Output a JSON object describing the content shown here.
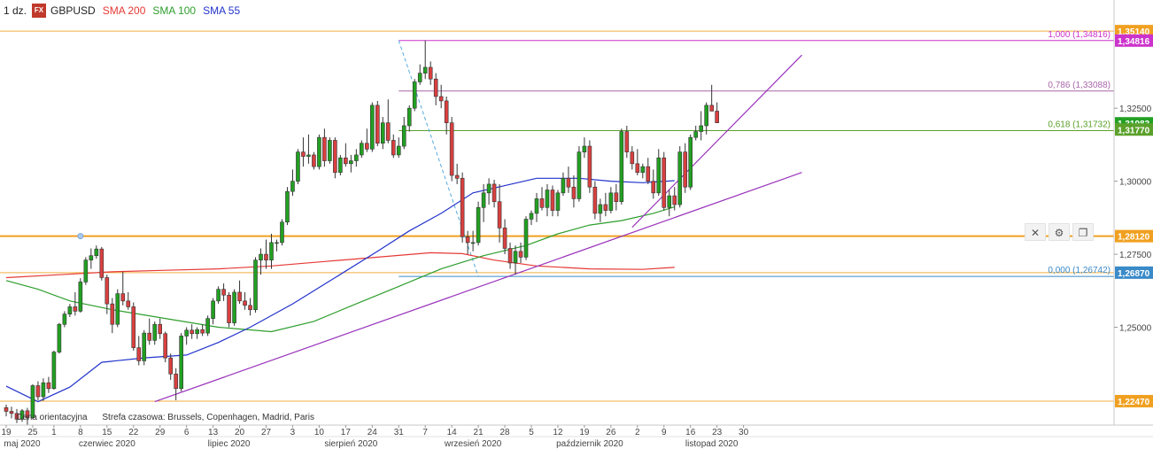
{
  "legend": {
    "timeframe": "1 dz.",
    "fx_badge": "FX",
    "symbol": "GBPUSD",
    "indicators": [
      {
        "label": "SMA 200",
        "color": "#e53935"
      },
      {
        "label": "SMA 100",
        "color": "#2e9e2e"
      },
      {
        "label": "SMA 55",
        "color": "#2233cc"
      }
    ]
  },
  "footer": {
    "price_note": "Cena orientacyjna",
    "timezone_note": "Strefa czasowa: Brussels, Copenhagen, Madrid, Paris"
  },
  "toolbar": {
    "close_icon": "close-icon",
    "settings_icon": "gear-icon",
    "layers_icon": "layers-icon"
  },
  "chart_data": {
    "type": "candlestick",
    "ylim": [
      1.2165,
      1.3575
    ],
    "colors": {
      "up": "#22a022",
      "down": "#d94040",
      "fib": "#b06ab0",
      "level": "#f0a020",
      "trend": "#9933bb",
      "axis_box": "#3a8ac8"
    },
    "y_ticks": [
      "1,25000",
      "1,27500",
      "1,30000",
      "1,32500"
    ],
    "x_day_ticks": [
      {
        "i": 0,
        "label": "19"
      },
      {
        "i": 5,
        "label": "25"
      },
      {
        "i": 9,
        "label": "1"
      },
      {
        "i": 14,
        "label": "8"
      },
      {
        "i": 19,
        "label": "15"
      },
      {
        "i": 24,
        "label": "22"
      },
      {
        "i": 29,
        "label": "29"
      },
      {
        "i": 34,
        "label": "6"
      },
      {
        "i": 39,
        "label": "13"
      },
      {
        "i": 44,
        "label": "20"
      },
      {
        "i": 49,
        "label": "27"
      },
      {
        "i": 54,
        "label": "3"
      },
      {
        "i": 59,
        "label": "10"
      },
      {
        "i": 64,
        "label": "17"
      },
      {
        "i": 69,
        "label": "24"
      },
      {
        "i": 74,
        "label": "31"
      },
      {
        "i": 79,
        "label": "7"
      },
      {
        "i": 84,
        "label": "14"
      },
      {
        "i": 89,
        "label": "21"
      },
      {
        "i": 94,
        "label": "28"
      },
      {
        "i": 99,
        "label": "5"
      },
      {
        "i": 104,
        "label": "12"
      },
      {
        "i": 109,
        "label": "19"
      },
      {
        "i": 114,
        "label": "26"
      },
      {
        "i": 119,
        "label": "2"
      },
      {
        "i": 124,
        "label": "9"
      },
      {
        "i": 129,
        "label": "16"
      },
      {
        "i": 134,
        "label": "23"
      },
      {
        "i": 139,
        "label": "30"
      }
    ],
    "x_month_ticks": [
      {
        "i": 3,
        "label": "maj 2020"
      },
      {
        "i": 19,
        "label": "czerwiec 2020"
      },
      {
        "i": 42,
        "label": "lipiec 2020"
      },
      {
        "i": 65,
        "label": "sierpień 2020"
      },
      {
        "i": 88,
        "label": "wrzesień 2020"
      },
      {
        "i": 110,
        "label": "październik 2020"
      },
      {
        "i": 133,
        "label": "listopad 2020"
      }
    ],
    "candles": [
      [
        1.2225,
        1.2235,
        1.2195,
        1.2212
      ],
      [
        1.2212,
        1.2228,
        1.2188,
        1.2205
      ],
      [
        1.2205,
        1.222,
        1.2172,
        1.2185
      ],
      [
        1.2185,
        1.222,
        1.2176,
        1.2214
      ],
      [
        1.2214,
        1.2224,
        1.2165,
        1.219
      ],
      [
        1.219,
        1.2305,
        1.2185,
        1.23
      ],
      [
        1.23,
        1.2315,
        1.225,
        1.2262
      ],
      [
        1.2262,
        1.2325,
        1.2248,
        1.231
      ],
      [
        1.231,
        1.233,
        1.2275,
        1.229
      ],
      [
        1.229,
        1.242,
        1.2286,
        1.2415
      ],
      [
        1.2415,
        1.2515,
        1.241,
        1.251
      ],
      [
        1.251,
        1.2555,
        1.25,
        1.2545
      ],
      [
        1.2545,
        1.258,
        1.2535,
        1.257
      ],
      [
        1.257,
        1.262,
        1.254,
        1.2555
      ],
      [
        1.2555,
        1.2668,
        1.255,
        1.2655
      ],
      [
        1.2655,
        1.274,
        1.2645,
        1.273
      ],
      [
        1.273,
        1.277,
        1.27,
        1.2745
      ],
      [
        1.2745,
        1.278,
        1.2735,
        1.2768
      ],
      [
        1.2768,
        1.2775,
        1.266,
        1.267
      ],
      [
        1.267,
        1.268,
        1.2545,
        1.258
      ],
      [
        1.258,
        1.26,
        1.248,
        1.251
      ],
      [
        1.251,
        1.263,
        1.25,
        1.2615
      ],
      [
        1.2615,
        1.269,
        1.2575,
        1.259
      ],
      [
        1.259,
        1.262,
        1.256,
        1.257
      ],
      [
        1.257,
        1.2585,
        1.242,
        1.243
      ],
      [
        1.243,
        1.247,
        1.237,
        1.2385
      ],
      [
        1.2385,
        1.249,
        1.237,
        1.248
      ],
      [
        1.248,
        1.253,
        1.244,
        1.2455
      ],
      [
        1.2455,
        1.252,
        1.244,
        1.251
      ],
      [
        1.251,
        1.253,
        1.246,
        1.2478
      ],
      [
        1.2478,
        1.2485,
        1.238,
        1.2395
      ],
      [
        1.2395,
        1.241,
        1.232,
        1.234
      ],
      [
        1.234,
        1.236,
        1.225,
        1.229
      ],
      [
        1.229,
        1.248,
        1.228,
        1.247
      ],
      [
        1.247,
        1.25,
        1.244,
        1.249
      ],
      [
        1.249,
        1.251,
        1.246,
        1.2478
      ],
      [
        1.2478,
        1.25,
        1.246,
        1.2492
      ],
      [
        1.2492,
        1.251,
        1.247,
        1.248
      ],
      [
        1.248,
        1.254,
        1.247,
        1.253
      ],
      [
        1.253,
        1.26,
        1.251,
        1.259
      ],
      [
        1.259,
        1.264,
        1.258,
        1.263
      ],
      [
        1.263,
        1.265,
        1.259,
        1.261
      ],
      [
        1.261,
        1.262,
        1.25,
        1.2515
      ],
      [
        1.2515,
        1.263,
        1.2505,
        1.262
      ],
      [
        1.262,
        1.266,
        1.258,
        1.259
      ],
      [
        1.259,
        1.262,
        1.256,
        1.2575
      ],
      [
        1.2575,
        1.26,
        1.254,
        1.256
      ],
      [
        1.256,
        1.274,
        1.255,
        1.273
      ],
      [
        1.273,
        1.277,
        1.268,
        1.275
      ],
      [
        1.275,
        1.28,
        1.27,
        1.273
      ],
      [
        1.273,
        1.282,
        1.27,
        1.279
      ],
      [
        1.279,
        1.28,
        1.276,
        1.279
      ],
      [
        1.279,
        1.287,
        1.278,
        1.286
      ],
      [
        1.286,
        1.298,
        1.285,
        1.2965
      ],
      [
        1.2965,
        1.304,
        1.295,
        1.3
      ],
      [
        1.3,
        1.311,
        1.299,
        1.31
      ],
      [
        1.31,
        1.315,
        1.305,
        1.3085
      ],
      [
        1.3085,
        1.316,
        1.306,
        1.309
      ],
      [
        1.309,
        1.31,
        1.304,
        1.305
      ],
      [
        1.305,
        1.316,
        1.304,
        1.315
      ],
      [
        1.315,
        1.318,
        1.305,
        1.307
      ],
      [
        1.307,
        1.315,
        1.306,
        1.314
      ],
      [
        1.314,
        1.315,
        1.301,
        1.303
      ],
      [
        1.303,
        1.309,
        1.302,
        1.308
      ],
      [
        1.308,
        1.313,
        1.305,
        1.306
      ],
      [
        1.306,
        1.309,
        1.303,
        1.307
      ],
      [
        1.307,
        1.311,
        1.305,
        1.309
      ],
      [
        1.309,
        1.314,
        1.308,
        1.313
      ],
      [
        1.313,
        1.318,
        1.31,
        1.311
      ],
      [
        1.311,
        1.327,
        1.31,
        1.326
      ],
      [
        1.326,
        1.3275,
        1.312,
        1.313
      ],
      [
        1.313,
        1.322,
        1.311,
        1.32
      ],
      [
        1.32,
        1.328,
        1.313,
        1.314
      ],
      [
        1.314,
        1.316,
        1.308,
        1.309
      ],
      [
        1.309,
        1.315,
        1.308,
        1.312
      ],
      [
        1.312,
        1.322,
        1.311,
        1.319
      ],
      [
        1.319,
        1.326,
        1.317,
        1.325
      ],
      [
        1.325,
        1.335,
        1.324,
        1.334
      ],
      [
        1.334,
        1.34,
        1.333,
        1.337
      ],
      [
        1.337,
        1.3482,
        1.335,
        1.339
      ],
      [
        1.339,
        1.341,
        1.333,
        1.335
      ],
      [
        1.335,
        1.337,
        1.326,
        1.329
      ],
      [
        1.329,
        1.333,
        1.325,
        1.3275
      ],
      [
        1.3275,
        1.329,
        1.316,
        1.32
      ],
      [
        1.32,
        1.322,
        1.3,
        1.302
      ],
      [
        1.302,
        1.306,
        1.299,
        1.301
      ],
      [
        1.301,
        1.303,
        1.279,
        1.281
      ],
      [
        1.281,
        1.283,
        1.275,
        1.279
      ],
      [
        1.279,
        1.283,
        1.276,
        1.279
      ],
      [
        1.279,
        1.293,
        1.278,
        1.291
      ],
      [
        1.291,
        1.299,
        1.286,
        1.296
      ],
      [
        1.296,
        1.301,
        1.292,
        1.299
      ],
      [
        1.299,
        1.3005,
        1.291,
        1.293
      ],
      [
        1.293,
        1.299,
        1.279,
        1.284
      ],
      [
        1.284,
        1.287,
        1.275,
        1.277
      ],
      [
        1.277,
        1.279,
        1.27,
        1.272
      ],
      [
        1.272,
        1.278,
        1.268,
        1.276
      ],
      [
        1.276,
        1.279,
        1.272,
        1.274
      ],
      [
        1.274,
        1.288,
        1.273,
        1.287
      ],
      [
        1.287,
        1.29,
        1.285,
        1.289
      ],
      [
        1.289,
        1.296,
        1.286,
        1.294
      ],
      [
        1.294,
        1.298,
        1.29,
        1.291
      ],
      [
        1.291,
        1.299,
        1.288,
        1.297
      ],
      [
        1.297,
        1.2985,
        1.288,
        1.29
      ],
      [
        1.29,
        1.297,
        1.288,
        1.296
      ],
      [
        1.296,
        1.303,
        1.295,
        1.301
      ],
      [
        1.301,
        1.305,
        1.296,
        1.298
      ],
      [
        1.298,
        1.302,
        1.291,
        1.294
      ],
      [
        1.294,
        1.312,
        1.293,
        1.31
      ],
      [
        1.31,
        1.315,
        1.308,
        1.312
      ],
      [
        1.312,
        1.314,
        1.296,
        1.298
      ],
      [
        1.298,
        1.3,
        1.287,
        1.289
      ],
      [
        1.289,
        1.294,
        1.286,
        1.292
      ],
      [
        1.292,
        1.296,
        1.288,
        1.29
      ],
      [
        1.29,
        1.298,
        1.289,
        1.296
      ],
      [
        1.296,
        1.299,
        1.29,
        1.293
      ],
      [
        1.293,
        1.318,
        1.292,
        1.317
      ],
      [
        1.317,
        1.319,
        1.308,
        1.31
      ],
      [
        1.31,
        1.312,
        1.304,
        1.306
      ],
      [
        1.306,
        1.311,
        1.302,
        1.303
      ],
      [
        1.303,
        1.306,
        1.301,
        1.305
      ],
      [
        1.305,
        1.308,
        1.299,
        1.3
      ],
      [
        1.3,
        1.304,
        1.294,
        1.296
      ],
      [
        1.296,
        1.311,
        1.295,
        1.308
      ],
      [
        1.308,
        1.31,
        1.29,
        1.291
      ],
      [
        1.291,
        1.297,
        1.288,
        1.295
      ],
      [
        1.295,
        1.298,
        1.29,
        1.292
      ],
      [
        1.292,
        1.312,
        1.291,
        1.31
      ],
      [
        1.31,
        1.313,
        1.296,
        1.298
      ],
      [
        1.298,
        1.316,
        1.297,
        1.315
      ],
      [
        1.315,
        1.319,
        1.314,
        1.317
      ],
      [
        1.317,
        1.324,
        1.314,
        1.319
      ],
      [
        1.319,
        1.327,
        1.316,
        1.326
      ],
      [
        1.326,
        1.333,
        1.324,
        1.324
      ],
      [
        1.324,
        1.327,
        1.32,
        1.32
      ]
    ],
    "sma55": [
      [
        0,
        1.2298
      ],
      [
        6,
        1.2245
      ],
      [
        12,
        1.2295
      ],
      [
        18,
        1.238
      ],
      [
        26,
        1.2395
      ],
      [
        34,
        1.2405
      ],
      [
        40,
        1.2448
      ],
      [
        46,
        1.25
      ],
      [
        54,
        1.258
      ],
      [
        62,
        1.267
      ],
      [
        70,
        1.276
      ],
      [
        76,
        1.283
      ],
      [
        82,
        1.289
      ],
      [
        88,
        1.296
      ],
      [
        94,
        1.2985
      ],
      [
        100,
        1.301
      ],
      [
        108,
        1.301
      ],
      [
        114,
        1.3
      ],
      [
        120,
        1.2995
      ],
      [
        126,
        1.3002
      ]
    ],
    "sma100": [
      [
        0,
        1.266
      ],
      [
        6,
        1.263
      ],
      [
        12,
        1.259
      ],
      [
        20,
        1.256
      ],
      [
        30,
        1.253
      ],
      [
        40,
        1.25
      ],
      [
        50,
        1.2485
      ],
      [
        58,
        1.252
      ],
      [
        66,
        1.258
      ],
      [
        74,
        1.264
      ],
      [
        82,
        1.27
      ],
      [
        90,
        1.2745
      ],
      [
        98,
        1.278
      ],
      [
        104,
        1.282
      ],
      [
        110,
        1.285
      ],
      [
        116,
        1.2865
      ],
      [
        122,
        1.289
      ],
      [
        126,
        1.2912
      ]
    ],
    "sma200": [
      [
        0,
        1.267
      ],
      [
        10,
        1.268
      ],
      [
        20,
        1.269
      ],
      [
        30,
        1.2695
      ],
      [
        40,
        1.27
      ],
      [
        50,
        1.271
      ],
      [
        60,
        1.2725
      ],
      [
        70,
        1.274
      ],
      [
        80,
        1.2755
      ],
      [
        86,
        1.2752
      ],
      [
        92,
        1.273
      ],
      [
        100,
        1.271
      ],
      [
        110,
        1.27
      ],
      [
        120,
        1.2698
      ],
      [
        126,
        1.2705
      ]
    ],
    "fib_levels": [
      {
        "value": 1.34816,
        "label": "1,000 (1,34816)"
      },
      {
        "value": 1.33088,
        "label": "0,786 (1,33088)"
      },
      {
        "value": 1.31732,
        "label": "0,618 (1,31732)"
      },
      {
        "value": 1.26742,
        "label": "0,000 (1,26742)"
      }
    ],
    "fib_range": {
      "from_i": 74,
      "to_i": 89
    },
    "horizontal_levels": [
      1.3514,
      1.2812,
      1.2687,
      1.2247
    ],
    "axis_price_labels": [
      {
        "value": 1.3514,
        "text": "1,35140"
      },
      {
        "value": 1.34816,
        "text": "1,34816"
      },
      {
        "value": 1.31983,
        "text": "1,31983"
      },
      {
        "value": 1.3177,
        "text": "1,31770"
      },
      {
        "value": 1.2812,
        "text": "1,28120"
      },
      {
        "value": 1.2687,
        "text": "1,26870"
      },
      {
        "value": 1.2247,
        "text": "1,22470"
      }
    ],
    "trend_lines": [
      {
        "from": [
          28,
          1.2245
        ],
        "to": [
          150,
          1.303
        ]
      },
      {
        "from": [
          118,
          1.2842
        ],
        "to": [
          150,
          1.3432
        ]
      }
    ],
    "marker_point": {
      "i": 14,
      "value": 1.2812
    }
  }
}
